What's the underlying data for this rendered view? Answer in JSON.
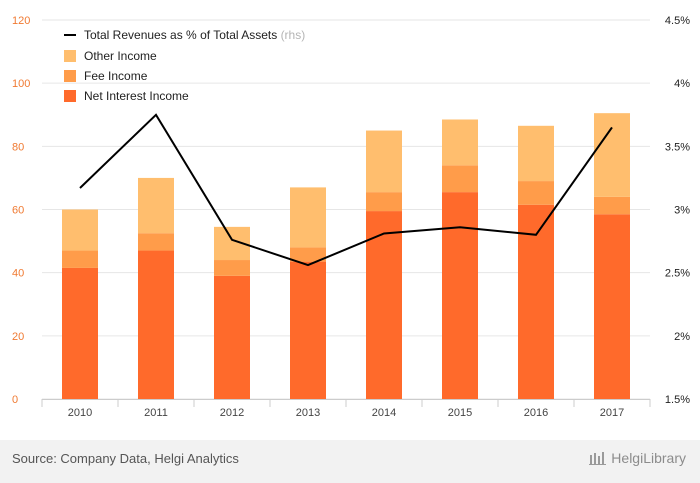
{
  "chart_data": {
    "type": "bar",
    "stacked": true,
    "categories": [
      "2010",
      "2011",
      "2012",
      "2013",
      "2014",
      "2015",
      "2016",
      "2017"
    ],
    "series": [
      {
        "name": "Net Interest Income",
        "color": "#ff6a2b",
        "values": [
          41.5,
          47,
          39,
          43.5,
          59.5,
          65.5,
          61.5,
          58.5
        ]
      },
      {
        "name": "Fee Income",
        "color": "#ff9c4a",
        "values": [
          5.5,
          5.5,
          5,
          4.5,
          6,
          8.5,
          7.5,
          5.5
        ]
      },
      {
        "name": "Other Income",
        "color": "#ffbe6e",
        "values": [
          13,
          17.5,
          10.5,
          19,
          19.5,
          14.5,
          17.5,
          26.5
        ]
      }
    ],
    "line_series": {
      "name": "Total Revenues as % of Total Assets",
      "axis_note": "(rhs)",
      "color": "#000000",
      "values": [
        3.17,
        3.75,
        2.76,
        2.56,
        2.81,
        2.86,
        2.8,
        3.65
      ]
    },
    "y_left": {
      "min": 0,
      "max": 120,
      "ticks": [
        "0",
        "20",
        "40",
        "60",
        "80",
        "100",
        "120"
      ]
    },
    "y_right": {
      "min": 1.5,
      "max": 4.5,
      "ticks": [
        "1.5%",
        "2%",
        "2.5%",
        "3%",
        "3.5%",
        "4%",
        "4.5%"
      ]
    },
    "legend_position": "top-left",
    "left_tick_color": "#f07a32",
    "right_tick_color": "#222222"
  },
  "footer": {
    "source": "Source: Company Data, Helgi Analytics",
    "brand": "HelgiLibrary"
  }
}
